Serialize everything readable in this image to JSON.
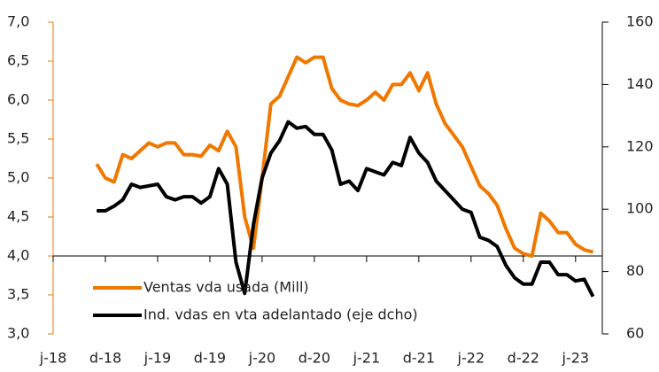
{
  "chart_data": {
    "type": "line",
    "categories": [
      "j-18",
      null,
      null,
      null,
      null,
      null,
      "d-18",
      null,
      null,
      null,
      null,
      null,
      "j-19",
      null,
      null,
      null,
      null,
      null,
      "d-19",
      null,
      null,
      null,
      null,
      null,
      "j-20",
      null,
      null,
      null,
      null,
      null,
      "d-20",
      null,
      null,
      null,
      null,
      null,
      "j-21",
      null,
      null,
      null,
      null,
      null,
      "d-21",
      null,
      null,
      null,
      null,
      null,
      "j-22",
      null,
      null,
      null,
      null,
      null,
      "d-22",
      null,
      null,
      null,
      null,
      null,
      "j-23",
      null,
      null
    ],
    "series": [
      {
        "name": "Ventas vda usada (Mill)",
        "color": "#f07800",
        "axis": "y",
        "values": [
          null,
          null,
          null,
          null,
          null,
          5.18,
          5.0,
          4.95,
          5.3,
          5.25,
          5.35,
          5.45,
          5.4,
          5.45,
          5.45,
          5.3,
          5.3,
          5.28,
          5.42,
          5.35,
          5.6,
          5.4,
          4.5,
          4.1,
          5.0,
          5.95,
          6.05,
          6.3,
          6.55,
          6.48,
          6.55,
          6.55,
          6.15,
          6.0,
          5.95,
          5.93,
          6.0,
          6.1,
          6.0,
          6.2,
          6.2,
          6.35,
          6.12,
          6.35,
          5.95,
          5.7,
          5.55,
          5.4,
          5.15,
          4.9,
          4.8,
          4.65,
          4.35,
          4.1,
          4.03,
          4.0,
          4.55,
          4.45,
          4.3,
          4.3,
          4.15,
          4.08,
          4.05
        ]
      },
      {
        "name": "Ind. vdas en vta adelantado (eje dcho)",
        "color": "#000000",
        "axis": "y2",
        "values": [
          null,
          null,
          null,
          null,
          null,
          99.5,
          99.5,
          101,
          103,
          108,
          107,
          107.5,
          108,
          104,
          103,
          104,
          104,
          102,
          104,
          113,
          108,
          83,
          73,
          95,
          110,
          118,
          122,
          128,
          126,
          126.5,
          124,
          124,
          119,
          108,
          109,
          106,
          113,
          112,
          111,
          115,
          114,
          123,
          118,
          115,
          109,
          106,
          103,
          100,
          99,
          91,
          90,
          88,
          82,
          78,
          76,
          76,
          83,
          83,
          79,
          79,
          77,
          77.5,
          72
        ]
      }
    ],
    "ylim": [
      3.0,
      7.0
    ],
    "yticks": [
      {
        "value": 3.0,
        "label": "3,0"
      },
      {
        "value": 3.5,
        "label": "3,5"
      },
      {
        "value": 4.0,
        "label": "4,0"
      },
      {
        "value": 4.5,
        "label": "4,5"
      },
      {
        "value": 5.0,
        "label": "5,0"
      },
      {
        "value": 5.5,
        "label": "5,5"
      },
      {
        "value": 6.0,
        "label": "6,0"
      },
      {
        "value": 6.5,
        "label": "6,5"
      },
      {
        "value": 7.0,
        "label": "7,0"
      }
    ],
    "y2lim": [
      60,
      160
    ],
    "y2ticks": [
      60,
      80,
      100,
      120,
      140,
      160
    ],
    "y_axis_color": "#f07800",
    "y2_axis_color": "#000000",
    "x_axis_crossing": 4.0,
    "legend": "lower-left",
    "grid": false
  }
}
